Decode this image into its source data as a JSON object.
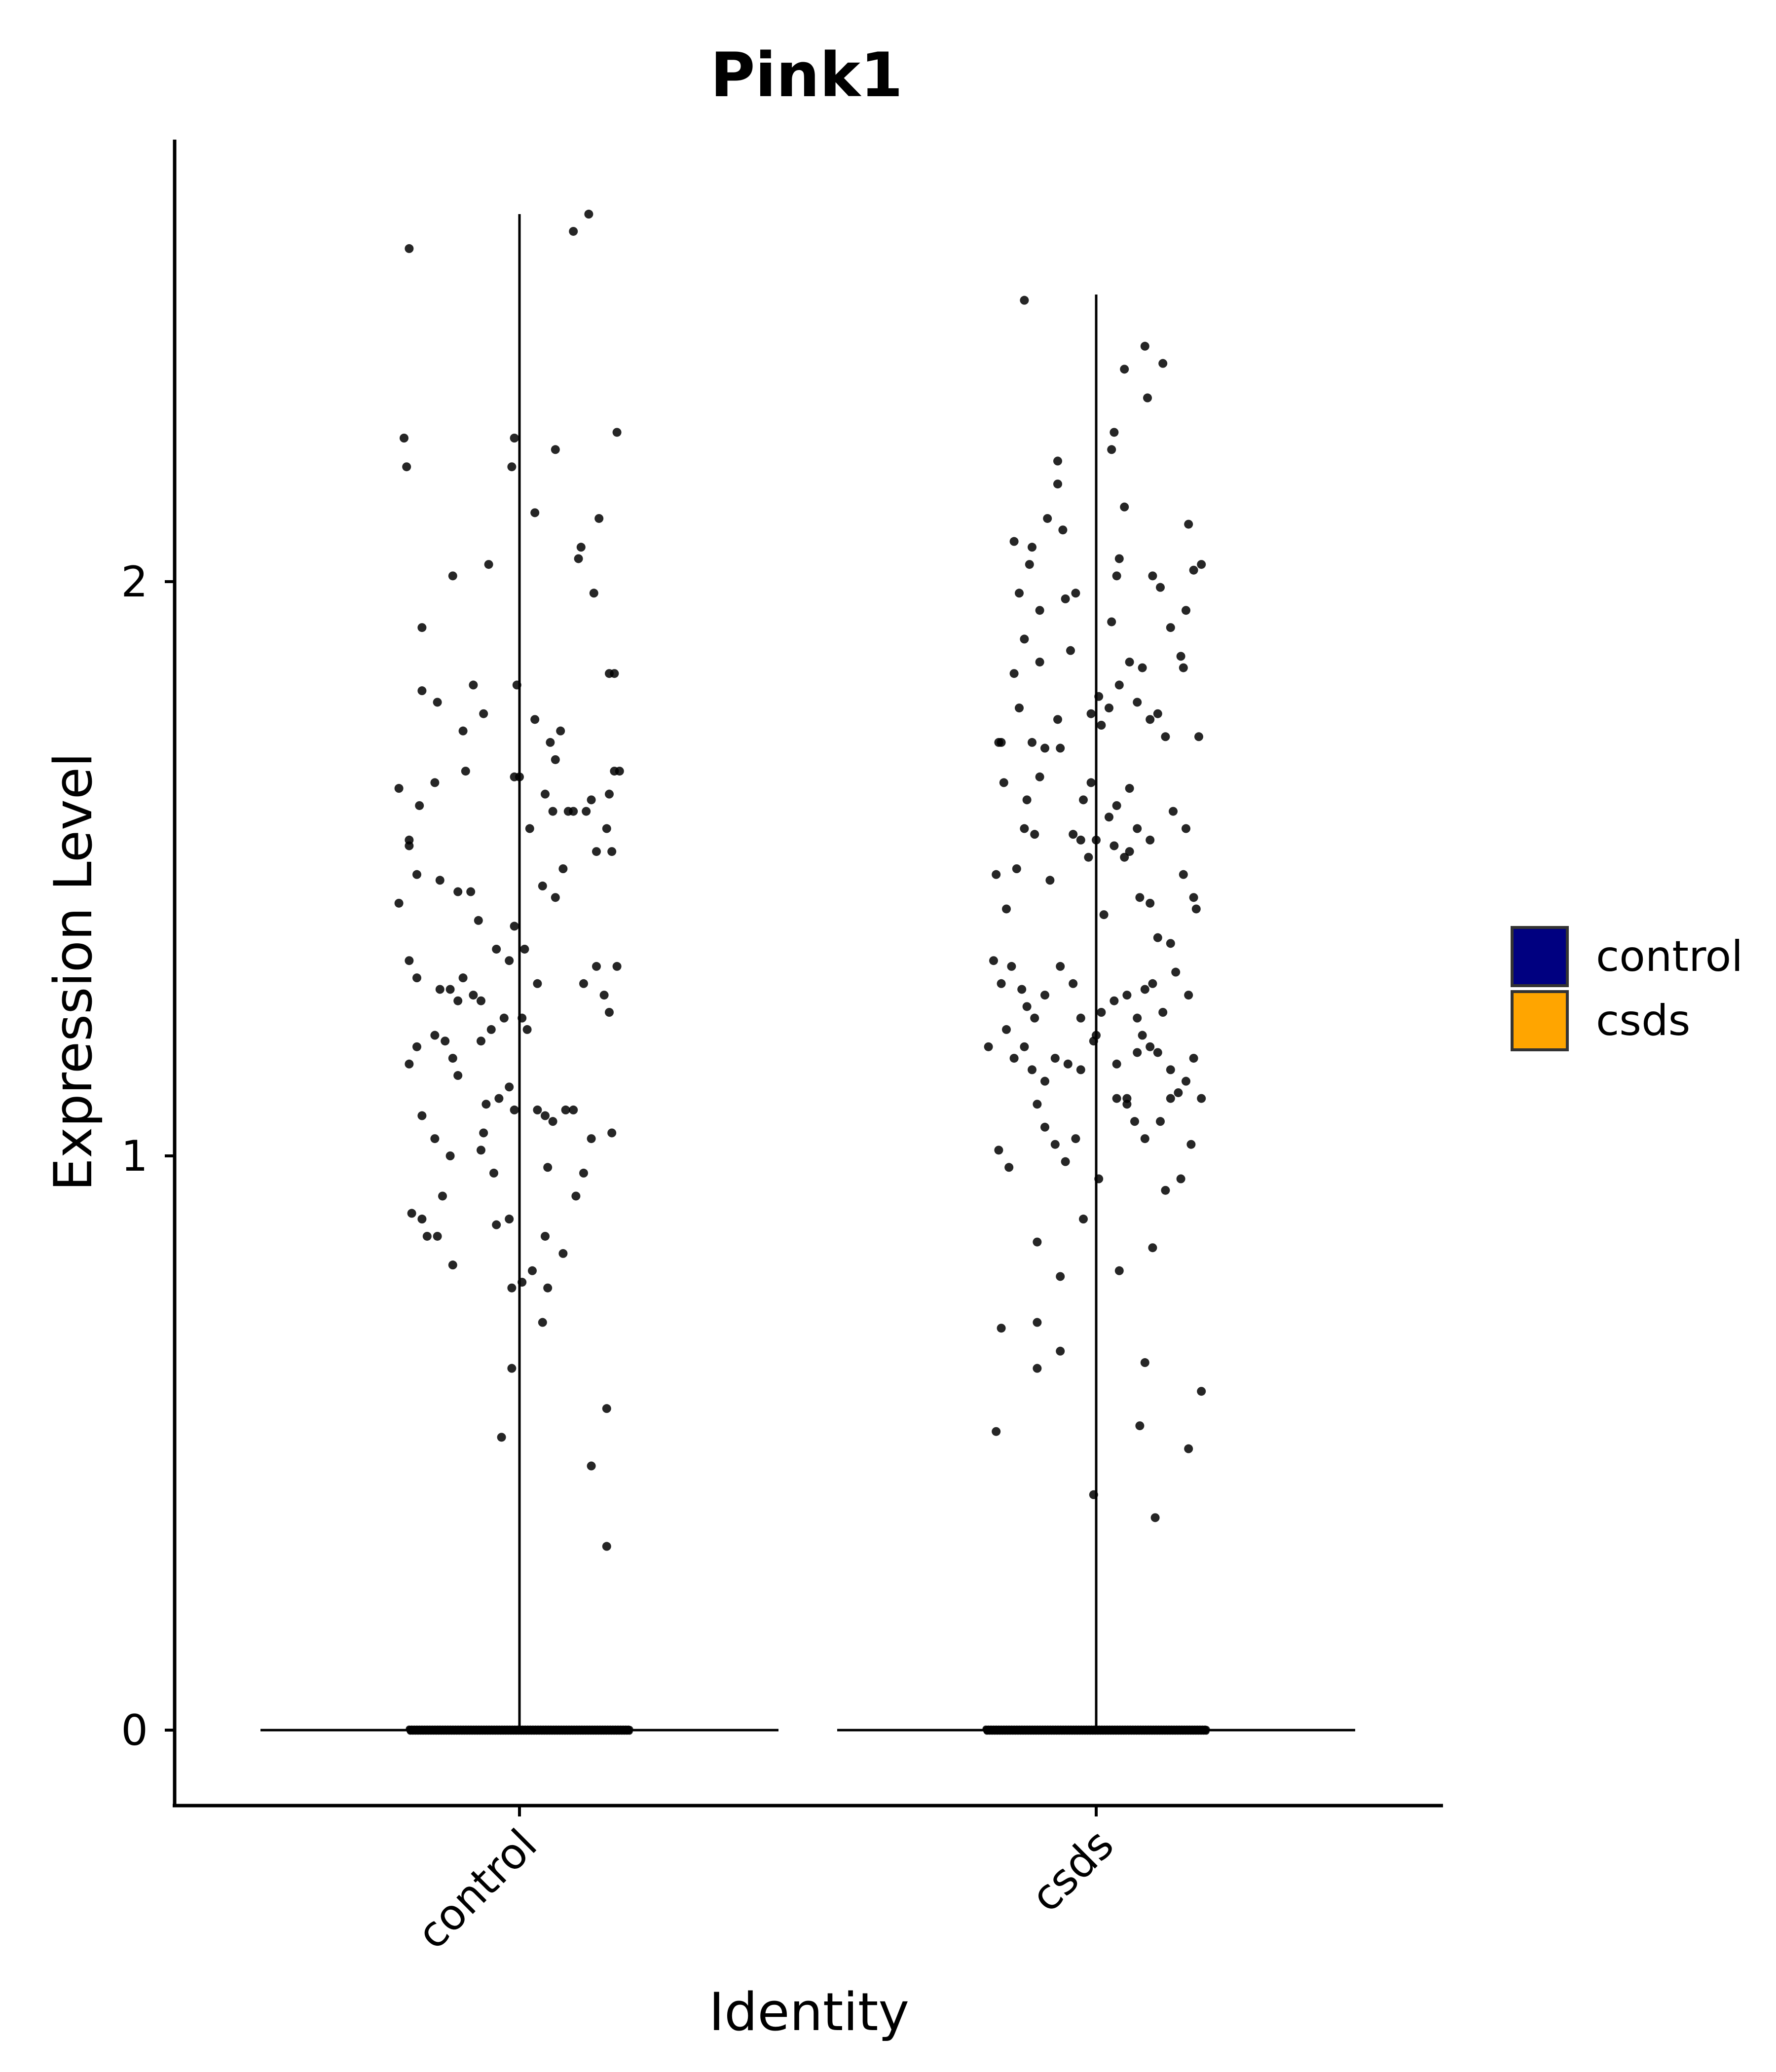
{
  "chart_data": {
    "type": "violin-jitter",
    "title": "Pink1",
    "xlabel": "Identity",
    "ylabel": "Expression Level",
    "categories": [
      "control",
      "csds"
    ],
    "ylim": [
      -0.13,
      2.75
    ],
    "yticks": [
      0,
      1,
      2
    ],
    "grid": false,
    "legend": {
      "placement": "right",
      "entries": [
        {
          "label": "control",
          "color": "#000080"
        },
        {
          "label": "csds",
          "color": "#FFA500"
        }
      ]
    },
    "series": [
      {
        "name": "control",
        "color": "#000080",
        "max": 2.64,
        "zero_count": 600,
        "points": [
          [
            -0.43,
            2.58
          ],
          [
            0.21,
            2.61
          ],
          [
            0.27,
            2.64
          ],
          [
            -0.45,
            2.25
          ],
          [
            -0.44,
            2.2
          ],
          [
            -0.26,
            2.01
          ],
          [
            -0.03,
            2.2
          ],
          [
            -0.02,
            2.25
          ],
          [
            -0.43,
            1.55
          ],
          [
            0.14,
            2.23
          ],
          [
            0.24,
            2.06
          ],
          [
            0.31,
            2.11
          ],
          [
            0.38,
            2.26
          ],
          [
            0.29,
            1.98
          ],
          [
            -0.12,
            2.03
          ],
          [
            0.23,
            2.04
          ],
          [
            0.06,
            2.12
          ],
          [
            -0.38,
            1.92
          ],
          [
            -0.32,
            1.79
          ],
          [
            -0.38,
            1.81
          ],
          [
            -0.18,
            1.82
          ],
          [
            -0.14,
            1.77
          ],
          [
            -0.22,
            1.74
          ],
          [
            -0.01,
            1.82
          ],
          [
            0.06,
            1.76
          ],
          [
            0.12,
            1.72
          ],
          [
            0.16,
            1.74
          ],
          [
            0.14,
            1.69
          ],
          [
            0.35,
            1.84
          ],
          [
            0.37,
            1.84
          ],
          [
            -0.47,
            1.64
          ],
          [
            -0.39,
            1.61
          ],
          [
            -0.33,
            1.65
          ],
          [
            -0.21,
            1.67
          ],
          [
            -0.02,
            1.66
          ],
          [
            0.0,
            1.66
          ],
          [
            0.19,
            1.6
          ],
          [
            0.26,
            1.6
          ],
          [
            0.21,
            1.6
          ],
          [
            0.28,
            1.62
          ],
          [
            0.35,
            1.63
          ],
          [
            0.37,
            1.67
          ],
          [
            0.39,
            1.67
          ],
          [
            -0.43,
            1.54
          ],
          [
            0.1,
            1.63
          ],
          [
            0.13,
            1.6
          ],
          [
            0.04,
            1.57
          ],
          [
            0.17,
            1.5
          ],
          [
            0.3,
            1.53
          ],
          [
            0.36,
            1.53
          ],
          [
            0.34,
            1.57
          ],
          [
            -0.47,
            1.44
          ],
          [
            -0.4,
            1.49
          ],
          [
            -0.31,
            1.48
          ],
          [
            -0.24,
            1.46
          ],
          [
            -0.19,
            1.46
          ],
          [
            -0.16,
            1.41
          ],
          [
            -0.09,
            1.36
          ],
          [
            -0.04,
            1.34
          ],
          [
            -0.02,
            1.4
          ],
          [
            0.02,
            1.36
          ],
          [
            0.09,
            1.47
          ],
          [
            0.14,
            1.45
          ],
          [
            -0.43,
            1.34
          ],
          [
            -0.4,
            1.31
          ],
          [
            -0.31,
            1.29
          ],
          [
            -0.27,
            1.29
          ],
          [
            -0.24,
            1.27
          ],
          [
            -0.22,
            1.31
          ],
          [
            -0.18,
            1.28
          ],
          [
            -0.15,
            1.27
          ],
          [
            -0.11,
            1.22
          ],
          [
            -0.06,
            1.24
          ],
          [
            0.01,
            1.24
          ],
          [
            0.03,
            1.22
          ],
          [
            0.07,
            1.3
          ],
          [
            0.25,
            1.3
          ],
          [
            0.3,
            1.33
          ],
          [
            0.33,
            1.28
          ],
          [
            0.35,
            1.25
          ],
          [
            0.38,
            1.33
          ],
          [
            -0.4,
            1.19
          ],
          [
            -0.33,
            1.21
          ],
          [
            -0.29,
            1.2
          ],
          [
            -0.26,
            1.17
          ],
          [
            -0.24,
            1.14
          ],
          [
            -0.15,
            1.2
          ],
          [
            -0.13,
            1.09
          ],
          [
            -0.08,
            1.1
          ],
          [
            -0.04,
            1.12
          ],
          [
            -0.02,
            1.08
          ],
          [
            0.07,
            1.08
          ],
          [
            0.1,
            1.07
          ],
          [
            0.13,
            1.06
          ],
          [
            0.18,
            1.08
          ],
          [
            0.21,
            1.08
          ],
          [
            0.28,
            1.03
          ],
          [
            0.36,
            1.04
          ],
          [
            -0.43,
            1.16
          ],
          [
            -0.38,
            1.07
          ],
          [
            -0.33,
            1.03
          ],
          [
            -0.27,
            1.0
          ],
          [
            -0.15,
            1.01
          ],
          [
            -0.1,
            0.97
          ],
          [
            -0.14,
            1.04
          ],
          [
            0.11,
            0.98
          ],
          [
            -0.42,
            0.9
          ],
          [
            -0.38,
            0.89
          ],
          [
            -0.32,
            0.86
          ],
          [
            -0.26,
            0.81
          ],
          [
            -0.09,
            0.88
          ],
          [
            -0.04,
            0.89
          ],
          [
            0.01,
            0.78
          ],
          [
            -0.03,
            0.77
          ],
          [
            0.05,
            0.8
          ],
          [
            0.1,
            0.86
          ],
          [
            0.17,
            0.83
          ],
          [
            0.11,
            0.77
          ],
          [
            0.09,
            0.71
          ],
          [
            -0.03,
            0.63
          ],
          [
            -0.07,
            0.51
          ],
          [
            0.28,
            0.46
          ],
          [
            0.34,
            0.56
          ],
          [
            0.34,
            0.32
          ],
          [
            0.25,
            0.97
          ],
          [
            0.22,
            0.93
          ],
          [
            -0.36,
            0.86
          ],
          [
            -0.3,
            0.93
          ]
        ]
      },
      {
        "name": "csds",
        "color": "#FFA500",
        "max": 2.5,
        "zero_count": 600,
        "points": [
          [
            -0.28,
            2.49
          ],
          [
            0.11,
            2.37
          ],
          [
            0.19,
            2.41
          ],
          [
            0.2,
            2.32
          ],
          [
            0.26,
            2.38
          ],
          [
            0.07,
            2.26
          ],
          [
            0.06,
            2.23
          ],
          [
            -0.15,
            2.21
          ],
          [
            -0.15,
            2.17
          ],
          [
            -0.19,
            2.11
          ],
          [
            -0.13,
            2.09
          ],
          [
            -0.32,
            2.07
          ],
          [
            -0.25,
            2.06
          ],
          [
            -0.26,
            2.03
          ],
          [
            -0.3,
            1.98
          ],
          [
            0.11,
            2.13
          ],
          [
            0.08,
            2.01
          ],
          [
            0.09,
            2.04
          ],
          [
            0.22,
            2.01
          ],
          [
            0.25,
            1.99
          ],
          [
            0.36,
            2.1
          ],
          [
            0.38,
            2.02
          ],
          [
            0.41,
            2.03
          ],
          [
            0.35,
            1.95
          ],
          [
            -0.28,
            1.9
          ],
          [
            -0.22,
            1.95
          ],
          [
            -0.22,
            1.86
          ],
          [
            -0.12,
            1.97
          ],
          [
            -0.08,
            1.98
          ],
          [
            -0.1,
            1.88
          ],
          [
            0.06,
            1.93
          ],
          [
            0.13,
            1.86
          ],
          [
            0.18,
            1.85
          ],
          [
            0.29,
            1.92
          ],
          [
            0.33,
            1.87
          ],
          [
            -0.32,
            1.84
          ],
          [
            -0.3,
            1.78
          ],
          [
            -0.38,
            1.72
          ],
          [
            -0.37,
            1.72
          ],
          [
            -0.25,
            1.72
          ],
          [
            -0.2,
            1.71
          ],
          [
            -0.15,
            1.76
          ],
          [
            -0.14,
            1.71
          ],
          [
            -0.02,
            1.77
          ],
          [
            0.01,
            1.8
          ],
          [
            0.02,
            1.75
          ],
          [
            0.05,
            1.78
          ],
          [
            0.09,
            1.82
          ],
          [
            0.16,
            1.79
          ],
          [
            0.21,
            1.76
          ],
          [
            0.24,
            1.77
          ],
          [
            0.27,
            1.73
          ],
          [
            0.4,
            1.73
          ],
          [
            0.34,
            1.85
          ],
          [
            -0.36,
            1.65
          ],
          [
            -0.27,
            1.62
          ],
          [
            -0.22,
            1.66
          ],
          [
            -0.02,
            1.65
          ],
          [
            -0.05,
            1.62
          ],
          [
            0.05,
            1.59
          ],
          [
            0.08,
            1.61
          ],
          [
            0.13,
            1.64
          ],
          [
            0.16,
            1.57
          ],
          [
            0.21,
            1.55
          ],
          [
            0.3,
            1.6
          ],
          [
            0.35,
            1.57
          ],
          [
            -0.39,
            1.49
          ],
          [
            -0.35,
            1.43
          ],
          [
            -0.31,
            1.5
          ],
          [
            -0.28,
            1.57
          ],
          [
            -0.24,
            1.56
          ],
          [
            -0.18,
            1.48
          ],
          [
            -0.09,
            1.56
          ],
          [
            -0.06,
            1.55
          ],
          [
            -0.03,
            1.52
          ],
          [
            0.0,
            1.55
          ],
          [
            0.07,
            1.54
          ],
          [
            0.11,
            1.52
          ],
          [
            0.13,
            1.53
          ],
          [
            0.17,
            1.45
          ],
          [
            0.21,
            1.44
          ],
          [
            0.24,
            1.38
          ],
          [
            0.29,
            1.37
          ],
          [
            0.34,
            1.49
          ],
          [
            0.38,
            1.45
          ],
          [
            0.39,
            1.43
          ],
          [
            0.03,
            1.42
          ],
          [
            -0.4,
            1.34
          ],
          [
            -0.37,
            1.3
          ],
          [
            -0.33,
            1.33
          ],
          [
            -0.29,
            1.29
          ],
          [
            -0.27,
            1.26
          ],
          [
            -0.24,
            1.24
          ],
          [
            -0.2,
            1.28
          ],
          [
            -0.14,
            1.33
          ],
          [
            -0.09,
            1.3
          ],
          [
            -0.06,
            1.24
          ],
          [
            0.02,
            1.25
          ],
          [
            0.07,
            1.27
          ],
          [
            0.12,
            1.28
          ],
          [
            0.16,
            1.24
          ],
          [
            0.19,
            1.29
          ],
          [
            0.22,
            1.3
          ],
          [
            0.26,
            1.25
          ],
          [
            0.31,
            1.32
          ],
          [
            0.36,
            1.28
          ],
          [
            -0.42,
            1.19
          ],
          [
            -0.35,
            1.22
          ],
          [
            -0.32,
            1.17
          ],
          [
            -0.28,
            1.19
          ],
          [
            -0.25,
            1.15
          ],
          [
            -0.2,
            1.13
          ],
          [
            -0.16,
            1.17
          ],
          [
            -0.11,
            1.16
          ],
          [
            -0.06,
            1.15
          ],
          [
            0.0,
            1.21
          ],
          [
            0.08,
            1.16
          ],
          [
            0.12,
            1.1
          ],
          [
            0.16,
            1.18
          ],
          [
            0.18,
            1.21
          ],
          [
            0.21,
            1.19
          ],
          [
            0.24,
            1.18
          ],
          [
            0.29,
            1.15
          ],
          [
            0.32,
            1.11
          ],
          [
            0.35,
            1.13
          ],
          [
            0.38,
            1.17
          ],
          [
            0.41,
            1.1
          ],
          [
            -0.38,
            1.01
          ],
          [
            -0.34,
            0.98
          ],
          [
            -0.23,
            1.09
          ],
          [
            -0.2,
            1.05
          ],
          [
            -0.16,
            1.02
          ],
          [
            -0.12,
            0.99
          ],
          [
            -0.08,
            1.03
          ],
          [
            -0.01,
            1.2
          ],
          [
            0.01,
            0.96
          ],
          [
            0.08,
            1.1
          ],
          [
            0.12,
            1.09
          ],
          [
            0.15,
            1.06
          ],
          [
            0.19,
            1.03
          ],
          [
            0.25,
            1.06
          ],
          [
            0.29,
            1.1
          ],
          [
            0.33,
            0.96
          ],
          [
            0.37,
            1.02
          ],
          [
            -0.37,
            0.7
          ],
          [
            -0.39,
            0.52
          ],
          [
            -0.23,
            0.85
          ],
          [
            -0.23,
            0.71
          ],
          [
            -0.23,
            0.63
          ],
          [
            -0.14,
            0.79
          ],
          [
            -0.14,
            0.66
          ],
          [
            -0.05,
            0.89
          ],
          [
            0.09,
            0.8
          ],
          [
            0.19,
            0.64
          ],
          [
            0.17,
            0.53
          ],
          [
            0.22,
            0.84
          ],
          [
            0.23,
            0.37
          ],
          [
            0.36,
            0.49
          ],
          [
            0.41,
            0.59
          ],
          [
            -0.01,
            0.41
          ],
          [
            0.27,
            0.94
          ]
        ]
      }
    ]
  }
}
